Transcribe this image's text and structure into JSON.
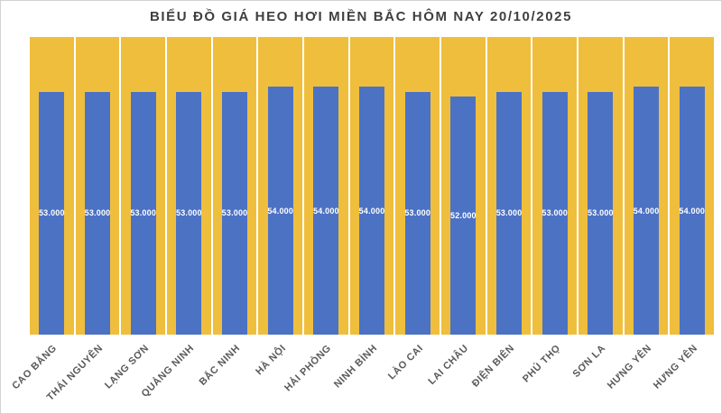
{
  "chart_data": {
    "type": "bar",
    "title": "BIỂU ĐỒ GIÁ HEO HƠI MIỀN BẮC HÔM NAY 20/10/2025",
    "categories": [
      "CAO BẰNG",
      "THÁI NGUYÊN",
      "LẠNG SƠN",
      "QUẢNG NINH",
      "BẮC NINH",
      "HÀ NỘI",
      "HẢI PHÒNG",
      "NINH BÌNH",
      "LÀO CAI",
      "LAI CHÂU",
      "ĐIỆN BIÊN",
      "PHÚ THỌ",
      "SƠN LA",
      "HƯNG YÊN",
      "HƯNG YÊN"
    ],
    "values": [
      53000,
      53000,
      53000,
      53000,
      53000,
      54000,
      54000,
      54000,
      53000,
      52000,
      53000,
      53000,
      53000,
      54000,
      54000
    ],
    "data_labels": [
      "53.000",
      "53.000",
      "53.000",
      "53.000",
      "53.000",
      "54.000",
      "54.000",
      "54.000",
      "53.000",
      "52.000",
      "53.000",
      "53.000",
      "53.000",
      "54.000",
      "54.000"
    ],
    "xlabel": "",
    "ylabel": "",
    "ylim": [
      0,
      64900
    ],
    "grid": false,
    "legend": false,
    "label_position": "center",
    "colors": {
      "bar": "#4c72c4",
      "background_column": "#efbe3d",
      "column_gap": "#f6f4ec",
      "title_text": "#3f3f3f",
      "axis_label_text": "#595959",
      "value_label_text": "#ffffff",
      "frame_border": "#d2d2d2",
      "page_background": "#ffffff"
    }
  }
}
